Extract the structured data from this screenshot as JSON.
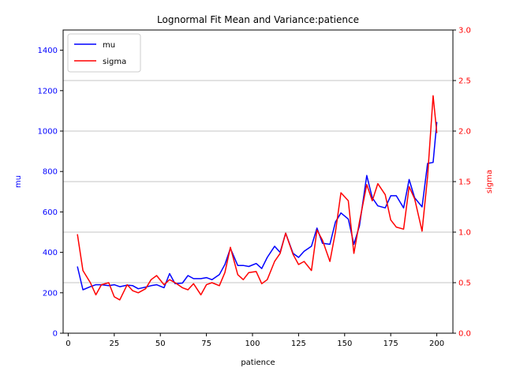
{
  "chart_data": {
    "type": "line",
    "title": "Lognormal Fit Mean and Variance:patience",
    "xlabel": "patience",
    "ylabel_left": "mu",
    "ylabel_right": "sigma",
    "xlim": [
      -2.75,
      208.75
    ],
    "ylim_left": [
      0,
      1500
    ],
    "ylim_right": [
      0,
      3.0
    ],
    "x_ticks": [
      0,
      25,
      50,
      75,
      100,
      125,
      150,
      175,
      200
    ],
    "y_ticks_left": [
      0,
      200,
      400,
      600,
      800,
      1000,
      1200,
      1400
    ],
    "y_ticks_right": [
      0.0,
      0.5,
      1.0,
      1.5,
      2.0,
      2.5,
      3.0
    ],
    "grid": "horizontal lines at right-axis ticks",
    "legend_position": "upper-left",
    "colors": {
      "mu": "#0000ff",
      "sigma": "#ff0000",
      "grid": "#b0b0b0"
    },
    "x": [
      5,
      8,
      12,
      15,
      18,
      22,
      25,
      28,
      32,
      35,
      38,
      42,
      45,
      48,
      52,
      55,
      58,
      62,
      65,
      68,
      72,
      75,
      78,
      82,
      85,
      88,
      92,
      95,
      98,
      102,
      105,
      108,
      112,
      115,
      118,
      122,
      125,
      128,
      132,
      135,
      138,
      142,
      145,
      148,
      152,
      155,
      158,
      162,
      165,
      168,
      172,
      175,
      178,
      182,
      185,
      188,
      192,
      195,
      198,
      200
    ],
    "series": [
      {
        "name": "mu",
        "axis": "left",
        "values": [
          330,
          215,
          230,
          240,
          240,
          235,
          240,
          230,
          238,
          235,
          220,
          228,
          235,
          240,
          225,
          295,
          245,
          248,
          285,
          270,
          270,
          275,
          265,
          290,
          340,
          420,
          335,
          335,
          330,
          345,
          320,
          375,
          430,
          400,
          495,
          395,
          375,
          405,
          430,
          520,
          445,
          440,
          550,
          595,
          565,
          440,
          530,
          780,
          670,
          630,
          620,
          680,
          680,
          620,
          760,
          670,
          625,
          840,
          845,
          1045
        ],
        "values_right_units": [
          0.66,
          0.43,
          0.46,
          0.48,
          0.48,
          0.47,
          0.48,
          0.46,
          0.476,
          0.47,
          0.44,
          0.456,
          0.47,
          0.48,
          0.45,
          0.59,
          0.49,
          0.496,
          0.57,
          0.54,
          0.54,
          0.55,
          0.53,
          0.58,
          0.68,
          0.84,
          0.67,
          0.67,
          0.66,
          0.69,
          0.64,
          0.75,
          0.86,
          0.8,
          0.99,
          0.79,
          0.75,
          0.81,
          0.86,
          1.04,
          0.89,
          0.88,
          1.1,
          1.19,
          1.13,
          0.88,
          1.06,
          1.56,
          1.34,
          1.26,
          1.24,
          1.36,
          1.36,
          1.24,
          1.52,
          1.34,
          1.25,
          1.68,
          1.69,
          2.09
        ]
      },
      {
        "name": "sigma",
        "axis": "right",
        "values": [
          0.98,
          0.62,
          0.5,
          0.38,
          0.48,
          0.5,
          0.36,
          0.33,
          0.48,
          0.42,
          0.4,
          0.44,
          0.53,
          0.57,
          0.48,
          0.53,
          0.5,
          0.45,
          0.43,
          0.49,
          0.38,
          0.48,
          0.5,
          0.47,
          0.6,
          0.85,
          0.58,
          0.53,
          0.6,
          0.61,
          0.49,
          0.53,
          0.71,
          0.79,
          0.99,
          0.78,
          0.68,
          0.71,
          0.62,
          1.02,
          0.92,
          0.71,
          1.0,
          1.39,
          1.31,
          0.79,
          1.1,
          1.47,
          1.31,
          1.48,
          1.37,
          1.12,
          1.05,
          1.03,
          1.45,
          1.33,
          1.01,
          1.55,
          2.35,
          1.98
        ]
      }
    ]
  }
}
